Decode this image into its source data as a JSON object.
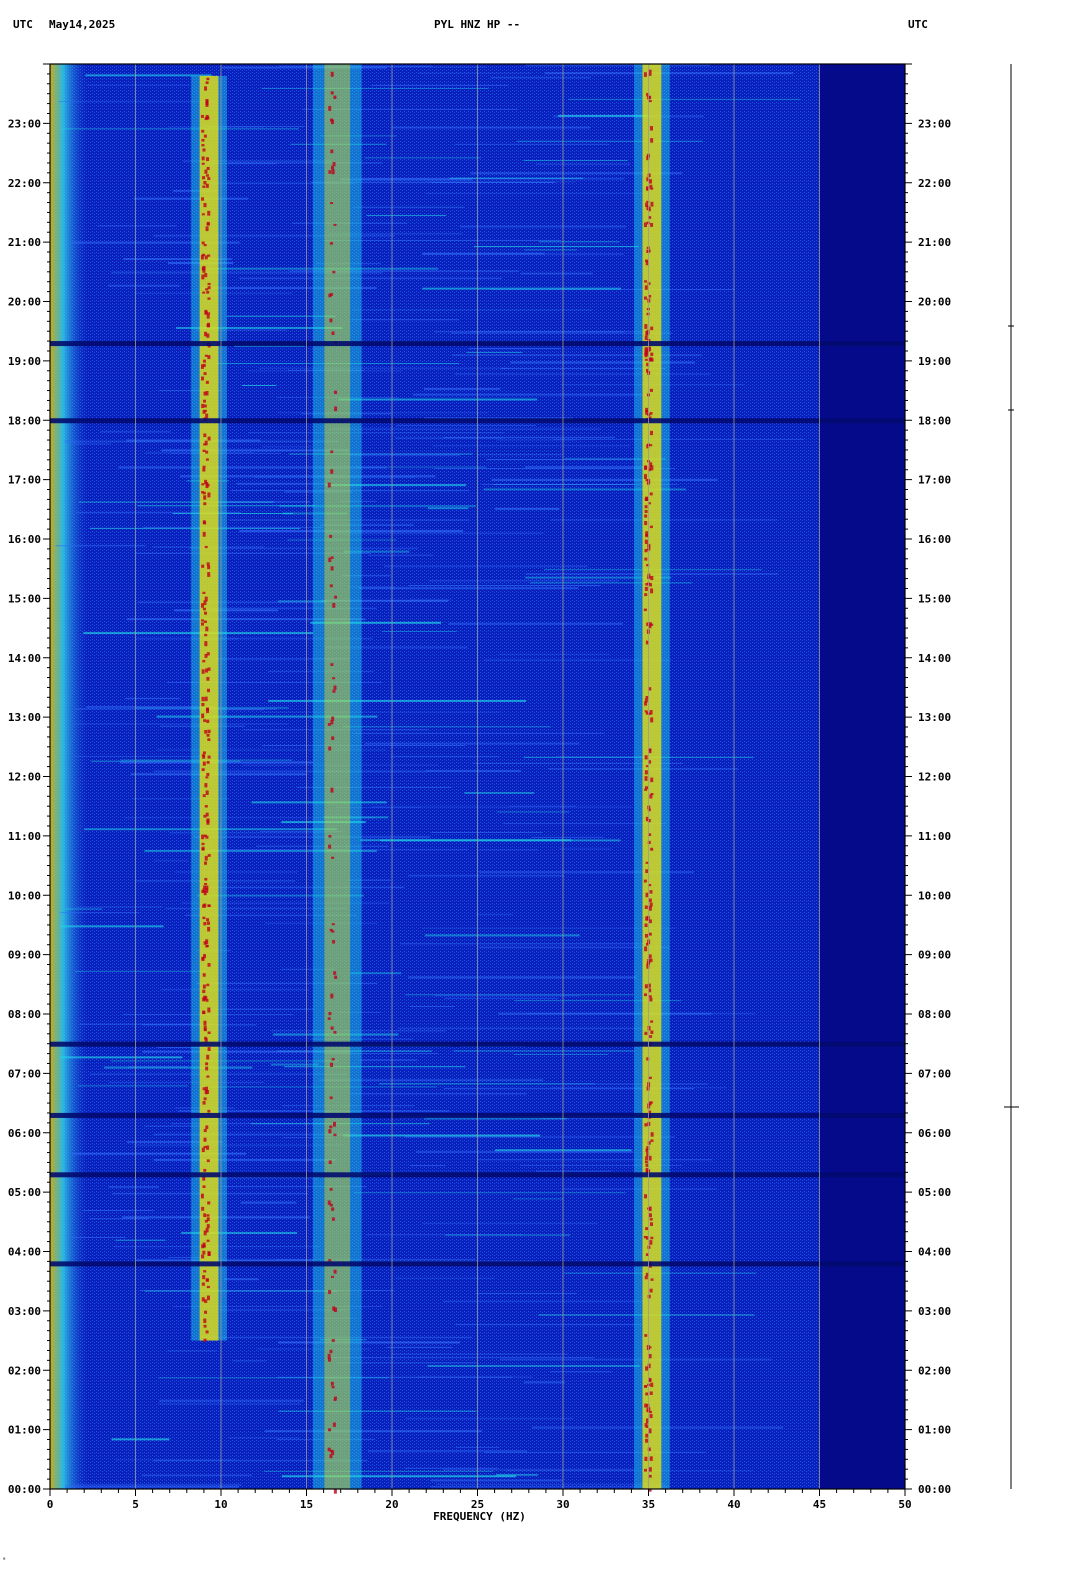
{
  "header": {
    "left_tz": "UTC",
    "date": "May14,2025",
    "station": "PYL HNZ HP --",
    "right_tz": "UTC"
  },
  "footer_mark": "ᵃ",
  "colors": {
    "background_band": "#0a1fc0",
    "high_freq_band": "#050a8a",
    "hot": "#c0001c",
    "warm": "#f5e400",
    "mid": "#20d8e8",
    "gridline": "#9a9a9a"
  },
  "chart_data": {
    "type": "heatmap",
    "title": "PYL HNZ HP --",
    "xlabel": "FREQUENCY (HZ)",
    "ylabel": "",
    "xlim": [
      0,
      50
    ],
    "ylim": [
      "00:00",
      "24:00"
    ],
    "x_ticks": [
      0,
      5,
      10,
      15,
      20,
      25,
      30,
      35,
      40,
      45,
      50
    ],
    "y_ticks": [
      "00:00",
      "01:00",
      "02:00",
      "03:00",
      "04:00",
      "05:00",
      "06:00",
      "07:00",
      "08:00",
      "09:00",
      "10:00",
      "11:00",
      "12:00",
      "13:00",
      "14:00",
      "15:00",
      "16:00",
      "17:00",
      "18:00",
      "19:00",
      "20:00",
      "21:00",
      "22:00",
      "23:00"
    ],
    "time_direction": "bottom-to-top",
    "grid": true,
    "rolloff_frequency_hz": 45,
    "persistent_bands_hz": [
      {
        "name": "",
        "freq": 9.3,
        "strength": "strong",
        "active_hours": [
          2.5,
          23.8
        ]
      },
      {
        "name": "",
        "freq": 16.8,
        "strength": "moderate",
        "active_hours": [
          0.0,
          24.0
        ]
      },
      {
        "name": "",
        "freq": 35.2,
        "strength": "strong",
        "active_hours": [
          0.0,
          24.0
        ]
      }
    ],
    "low_freq_energy_hz": 0.5,
    "quiet_gaps_hours": [
      3.8,
      5.3,
      6.3,
      7.5,
      18.0,
      19.3
    ]
  }
}
